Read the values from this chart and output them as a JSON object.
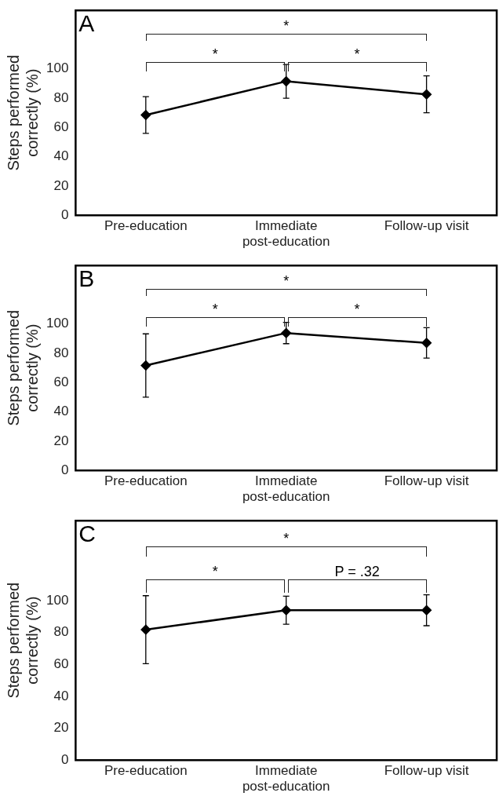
{
  "chart_data": [
    {
      "type": "line",
      "title": "A",
      "ylabel": "Steps performed correctly (%)",
      "categories": [
        "Pre-education",
        "Immediate post-education",
        "Follow-up visit"
      ],
      "series": [
        {
          "color": "#000000",
          "values": [
            68.5,
            91.5,
            82.6
          ],
          "errors": [
            12.5,
            11.5,
            12.6
          ]
        }
      ],
      "ylim": [
        0,
        140
      ],
      "yticks": [
        0,
        20,
        40,
        60,
        80,
        100
      ],
      "grid": false,
      "legend": false,
      "marker": "diamond",
      "line_style": "solid",
      "annotations": [
        "*",
        "*",
        "*"
      ]
    },
    {
      "type": "line",
      "title": "B",
      "ylabel": "Steps performed correctly (%)",
      "categories": [
        "Pre-education",
        "Immediate post-education",
        "Follow-up visit"
      ],
      "series": [
        {
          "color": "#000000",
          "values": [
            71.7,
            93.9,
            87.1
          ],
          "errors": [
            21.6,
            7.3,
            10.4
          ]
        }
      ],
      "ylim": [
        0,
        140
      ],
      "yticks": [
        0,
        20,
        40,
        60,
        80,
        100
      ],
      "grid": false,
      "legend": false,
      "marker": "diamond",
      "line_style": "solid",
      "annotations": [
        "*",
        "*",
        "*"
      ]
    },
    {
      "type": "line",
      "title": "C",
      "ylabel": "Steps performed correctly (%)",
      "categories": [
        "Pre-education",
        "Immediate post-education",
        "Follow-up visit"
      ],
      "series": [
        {
          "color": "#000000",
          "values": [
            81.7,
            93.9,
            93.9
          ],
          "errors": [
            21.3,
            8.8,
            9.7
          ]
        }
      ],
      "ylim": [
        0,
        150
      ],
      "yticks": [
        0,
        20,
        40,
        60,
        80,
        100
      ],
      "grid": false,
      "legend": false,
      "marker": "diamond",
      "line_style": "solid",
      "annotations": [
        "*",
        "*",
        "P = .32"
      ]
    }
  ]
}
